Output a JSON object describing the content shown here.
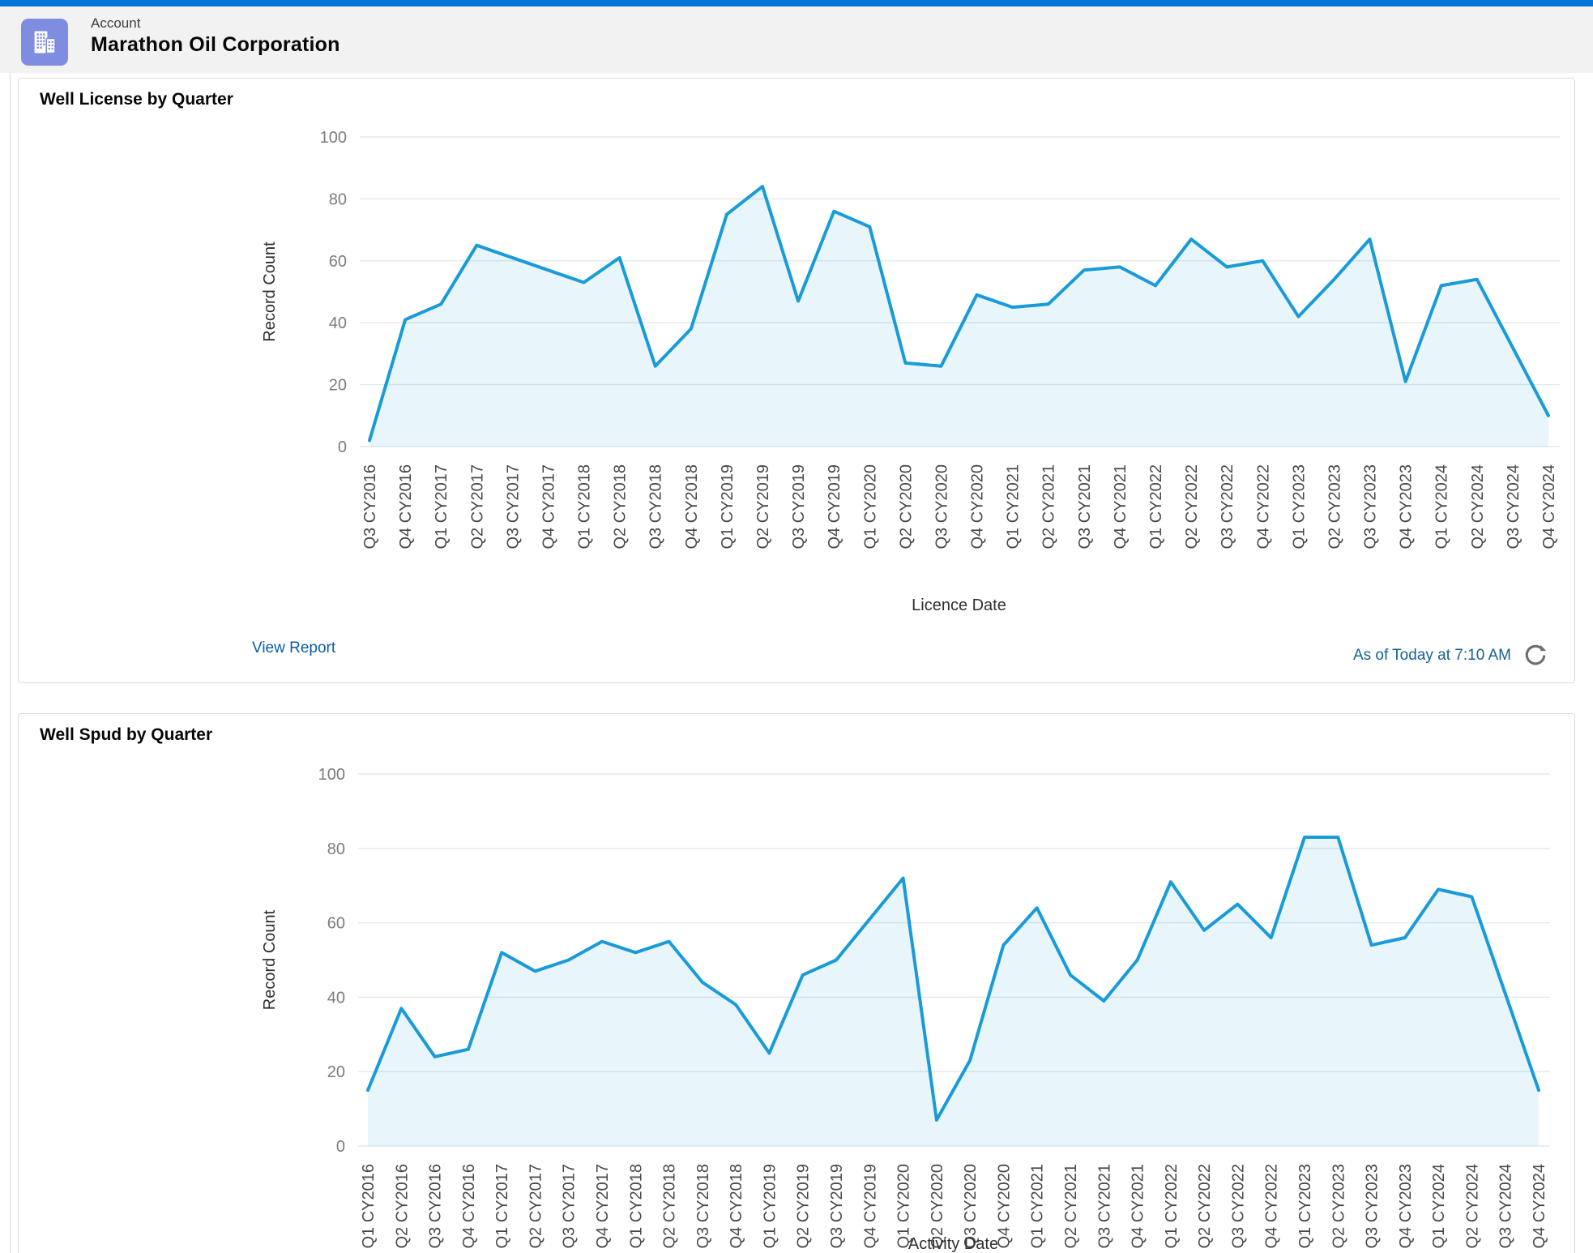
{
  "app": {
    "topbar_color": "#0176d3"
  },
  "header": {
    "object_label": "Account",
    "record_name": "Marathon Oil Corporation",
    "icon": "account-building-icon",
    "icon_color": "#7f8de1"
  },
  "cards": [
    {
      "title": "Well License by Quarter",
      "view_report_label": "View Report",
      "as_of_text": "As of Today at 7:10 AM",
      "refresh_icon": "refresh-icon"
    },
    {
      "title": "Well Spud by Quarter"
    }
  ],
  "chart_data": [
    {
      "type": "area",
      "title": "Well License by Quarter",
      "xlabel": "Licence Date",
      "ylabel": "Record Count",
      "ylim": [
        0,
        100
      ],
      "yticks": [
        0,
        20,
        40,
        60,
        80,
        100
      ],
      "grid": true,
      "legend": false,
      "line_color": "#199bd8",
      "fill_color": "rgba(27,154,214,0.10)",
      "categories": [
        "Q3 CY2016",
        "Q4 CY2016",
        "Q1 CY2017",
        "Q2 CY2017",
        "Q3 CY2017",
        "Q4 CY2017",
        "Q1 CY2018",
        "Q2 CY2018",
        "Q3 CY2018",
        "Q4 CY2018",
        "Q1 CY2019",
        "Q2 CY2019",
        "Q3 CY2019",
        "Q4 CY2019",
        "Q1 CY2020",
        "Q2 CY2020",
        "Q3 CY2020",
        "Q4 CY2020",
        "Q1 CY2021",
        "Q2 CY2021",
        "Q3 CY2021",
        "Q4 CY2021",
        "Q1 CY2022",
        "Q2 CY2022",
        "Q3 CY2022",
        "Q4 CY2022",
        "Q1 CY2023",
        "Q2 CY2023",
        "Q3 CY2023",
        "Q4 CY2023",
        "Q1 CY2024",
        "Q2 CY2024",
        "Q3 CY2024",
        "Q4 CY2024"
      ],
      "values": [
        2,
        41,
        46,
        65,
        61,
        57,
        53,
        61,
        26,
        38,
        75,
        84,
        47,
        76,
        71,
        27,
        26,
        49,
        45,
        46,
        57,
        58,
        52,
        67,
        58,
        60,
        42,
        54,
        67,
        21,
        52,
        54,
        32,
        10
      ]
    },
    {
      "type": "area",
      "title": "Well Spud by Quarter",
      "xlabel": "Activity Date",
      "ylabel": "Record Count",
      "ylim": [
        0,
        100
      ],
      "yticks": [
        0,
        20,
        40,
        60,
        80,
        100
      ],
      "grid": true,
      "legend": false,
      "line_color": "#199bd8",
      "fill_color": "rgba(27,154,214,0.10)",
      "categories": [
        "Q1 CY2016",
        "Q2 CY2016",
        "Q3 CY2016",
        "Q4 CY2016",
        "Q1 CY2017",
        "Q2 CY2017",
        "Q3 CY2017",
        "Q4 CY2017",
        "Q1 CY2018",
        "Q2 CY2018",
        "Q3 CY2018",
        "Q4 CY2018",
        "Q1 CY2019",
        "Q2 CY2019",
        "Q3 CY2019",
        "Q4 CY2019",
        "Q1 CY2020",
        "Q2 CY2020",
        "Q3 CY2020",
        "Q4 CY2020",
        "Q1 CY2021",
        "Q2 CY2021",
        "Q3 CY2021",
        "Q4 CY2021",
        "Q1 CY2022",
        "Q2 CY2022",
        "Q3 CY2022",
        "Q4 CY2022",
        "Q1 CY2023",
        "Q2 CY2023",
        "Q3 CY2023",
        "Q4 CY2023",
        "Q1 CY2024",
        "Q2 CY2024",
        "Q3 CY2024",
        "Q4 CY2024"
      ],
      "values": [
        15,
        37,
        24,
        26,
        52,
        47,
        50,
        55,
        52,
        55,
        44,
        38,
        25,
        46,
        50,
        61,
        72,
        7,
        23,
        54,
        64,
        46,
        39,
        50,
        71,
        58,
        65,
        56,
        83,
        83,
        54,
        56,
        69,
        67,
        41,
        15
      ]
    }
  ]
}
